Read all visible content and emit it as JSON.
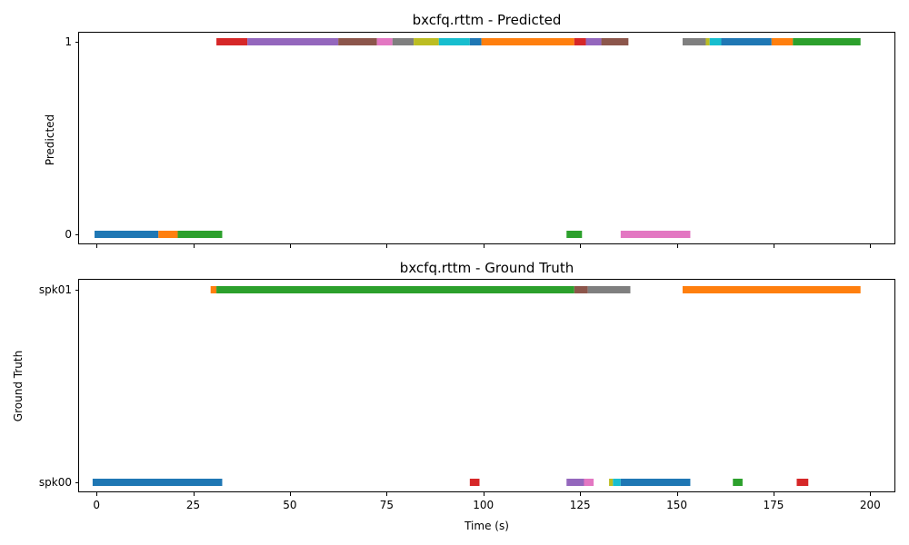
{
  "figure": {
    "xlabel": "Time (s)"
  },
  "chart_data": [
    {
      "type": "timeline",
      "title": "bxcfq.rttm - Predicted",
      "ylabel": "Predicted",
      "y_categories": [
        "0",
        "1"
      ],
      "xlim": [
        -4.5,
        206.5
      ],
      "x_ticks": [
        0,
        25,
        50,
        75,
        100,
        125,
        150,
        175,
        200
      ],
      "x_tick_labels_visible": false,
      "grid": false,
      "segments": [
        {
          "row": "0",
          "start": -0.5,
          "end": 16.0,
          "color": "#1f77b4"
        },
        {
          "row": "0",
          "start": 16.0,
          "end": 21.0,
          "color": "#ff7f0e"
        },
        {
          "row": "0",
          "start": 21.0,
          "end": 32.5,
          "color": "#2ca02c"
        },
        {
          "row": "1",
          "start": 31.0,
          "end": 39.0,
          "color": "#d62728"
        },
        {
          "row": "1",
          "start": 39.0,
          "end": 62.5,
          "color": "#9467bd"
        },
        {
          "row": "1",
          "start": 62.5,
          "end": 72.5,
          "color": "#8c564b"
        },
        {
          "row": "1",
          "start": 72.5,
          "end": 76.5,
          "color": "#e377c2"
        },
        {
          "row": "1",
          "start": 76.5,
          "end": 82.0,
          "color": "#7f7f7f"
        },
        {
          "row": "1",
          "start": 82.0,
          "end": 88.5,
          "color": "#bcbd22"
        },
        {
          "row": "1",
          "start": 88.5,
          "end": 96.5,
          "color": "#17becf"
        },
        {
          "row": "1",
          "start": 96.5,
          "end": 99.5,
          "color": "#1f77b4"
        },
        {
          "row": "1",
          "start": 99.5,
          "end": 123.5,
          "color": "#ff7f0e"
        },
        {
          "row": "0",
          "start": 121.5,
          "end": 125.5,
          "color": "#2ca02c"
        },
        {
          "row": "1",
          "start": 123.5,
          "end": 126.5,
          "color": "#d62728"
        },
        {
          "row": "1",
          "start": 126.5,
          "end": 130.5,
          "color": "#9467bd"
        },
        {
          "row": "1",
          "start": 130.5,
          "end": 137.5,
          "color": "#8c564b"
        },
        {
          "row": "0",
          "start": 135.5,
          "end": 153.5,
          "color": "#e377c2"
        },
        {
          "row": "1",
          "start": 151.5,
          "end": 157.5,
          "color": "#7f7f7f"
        },
        {
          "row": "1",
          "start": 157.5,
          "end": 158.5,
          "color": "#bcbd22"
        },
        {
          "row": "1",
          "start": 158.5,
          "end": 161.5,
          "color": "#17becf"
        },
        {
          "row": "1",
          "start": 161.5,
          "end": 174.5,
          "color": "#1f77b4"
        },
        {
          "row": "1",
          "start": 174.5,
          "end": 180.0,
          "color": "#ff7f0e"
        },
        {
          "row": "1",
          "start": 180.0,
          "end": 197.5,
          "color": "#2ca02c"
        }
      ]
    },
    {
      "type": "timeline",
      "title": "bxcfq.rttm - Ground Truth",
      "ylabel": "Ground Truth",
      "y_categories": [
        "spk00",
        "spk01"
      ],
      "xlim": [
        -4.5,
        206.5
      ],
      "x_ticks": [
        0,
        25,
        50,
        75,
        100,
        125,
        150,
        175,
        200
      ],
      "x_tick_labels": [
        "0",
        "25",
        "50",
        "75",
        "100",
        "125",
        "150",
        "175",
        "200"
      ],
      "grid": false,
      "segments": [
        {
          "row": "spk00",
          "start": -1.0,
          "end": 32.5,
          "color": "#1f77b4"
        },
        {
          "row": "spk01",
          "start": 29.5,
          "end": 31.0,
          "color": "#ff7f0e"
        },
        {
          "row": "spk01",
          "start": 31.0,
          "end": 123.5,
          "color": "#2ca02c"
        },
        {
          "row": "spk00",
          "start": 96.5,
          "end": 99.0,
          "color": "#d62728"
        },
        {
          "row": "spk00",
          "start": 121.5,
          "end": 126.5,
          "color": "#9467bd"
        },
        {
          "row": "spk00",
          "start": 126.0,
          "end": 128.5,
          "color": "#e377c2"
        },
        {
          "row": "spk01",
          "start": 123.5,
          "end": 127.0,
          "color": "#8c564b"
        },
        {
          "row": "spk01",
          "start": 127.0,
          "end": 138.0,
          "color": "#7f7f7f"
        },
        {
          "row": "spk00",
          "start": 132.5,
          "end": 133.5,
          "color": "#bcbd22"
        },
        {
          "row": "spk00",
          "start": 133.5,
          "end": 135.5,
          "color": "#17becf"
        },
        {
          "row": "spk00",
          "start": 135.5,
          "end": 153.5,
          "color": "#1f77b4"
        },
        {
          "row": "spk01",
          "start": 151.5,
          "end": 197.5,
          "color": "#ff7f0e"
        },
        {
          "row": "spk00",
          "start": 164.5,
          "end": 167.0,
          "color": "#2ca02c"
        },
        {
          "row": "spk00",
          "start": 181.0,
          "end": 184.0,
          "color": "#d62728"
        }
      ]
    }
  ]
}
